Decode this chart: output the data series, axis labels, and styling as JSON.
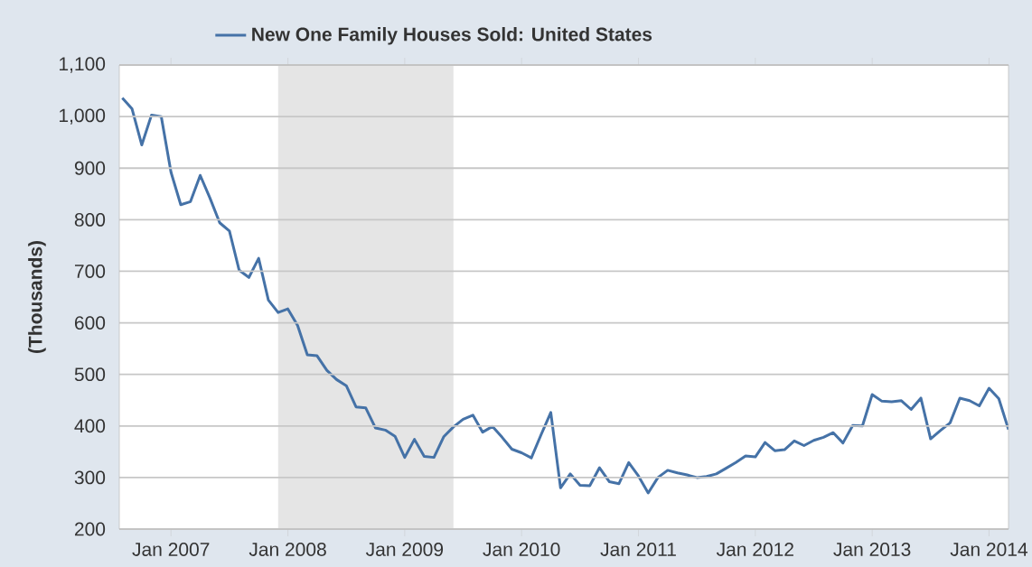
{
  "chart_data": {
    "type": "line",
    "ylabel": "(Thousands)",
    "x": [
      "2006-08",
      "2006-09",
      "2006-10",
      "2006-11",
      "2006-12",
      "2007-01",
      "2007-02",
      "2007-03",
      "2007-04",
      "2007-05",
      "2007-06",
      "2007-07",
      "2007-08",
      "2007-09",
      "2007-10",
      "2007-11",
      "2007-12",
      "2008-01",
      "2008-02",
      "2008-03",
      "2008-04",
      "2008-05",
      "2008-06",
      "2008-07",
      "2008-08",
      "2008-09",
      "2008-10",
      "2008-11",
      "2008-12",
      "2009-01",
      "2009-02",
      "2009-03",
      "2009-04",
      "2009-05",
      "2009-06",
      "2009-07",
      "2009-08",
      "2009-09",
      "2009-10",
      "2009-11",
      "2009-12",
      "2010-01",
      "2010-02",
      "2010-03",
      "2010-04",
      "2010-05",
      "2010-06",
      "2010-07",
      "2010-08",
      "2010-09",
      "2010-10",
      "2010-11",
      "2010-12",
      "2011-01",
      "2011-02",
      "2011-03",
      "2011-04",
      "2011-05",
      "2011-06",
      "2011-07",
      "2011-08",
      "2011-09",
      "2011-10",
      "2011-11",
      "2011-12",
      "2012-01",
      "2012-02",
      "2012-03",
      "2012-04",
      "2012-05",
      "2012-06",
      "2012-07",
      "2012-08",
      "2012-09",
      "2012-10",
      "2012-11",
      "2012-12",
      "2013-01",
      "2013-02",
      "2013-03",
      "2013-04",
      "2013-05",
      "2013-06",
      "2013-07",
      "2013-08",
      "2013-09",
      "2013-10",
      "2013-11",
      "2013-12",
      "2014-01",
      "2014-02",
      "2014-03"
    ],
    "series": [
      {
        "name": "New One Family Houses Sold: United States",
        "color": "#4572a7",
        "values": [
          1036,
          1015,
          945,
          1003,
          1000,
          892,
          829,
          835,
          886,
          842,
          794,
          778,
          702,
          688,
          725,
          644,
          620,
          627,
          595,
          538,
          536,
          508,
          490,
          478,
          437,
          435,
          396,
          392,
          380,
          339,
          374,
          341,
          339,
          379,
          398,
          413,
          421,
          388,
          399,
          378,
          355,
          348,
          338,
          383,
          426,
          280,
          307,
          285,
          284,
          319,
          292,
          288,
          329,
          303,
          270,
          300,
          314,
          309,
          305,
          300,
          302,
          307,
          318,
          329,
          342,
          340,
          368,
          352,
          354,
          371,
          362,
          372,
          378,
          387,
          367,
          401,
          400,
          461,
          448,
          447,
          449,
          432,
          454,
          375,
          391,
          406,
          454,
          449,
          439,
          473,
          453,
          393
        ]
      }
    ],
    "xlim": [
      "2006-07-22",
      "2014-03"
    ],
    "xticks": [
      {
        "value": "2007-01",
        "label": "Jan 2007"
      },
      {
        "value": "2008-01",
        "label": "Jan 2008"
      },
      {
        "value": "2009-01",
        "label": "Jan 2009"
      },
      {
        "value": "2010-01",
        "label": "Jan 2010"
      },
      {
        "value": "2011-01",
        "label": "Jan 2011"
      },
      {
        "value": "2012-01",
        "label": "Jan 2012"
      },
      {
        "value": "2013-01",
        "label": "Jan 2013"
      },
      {
        "value": "2014-01",
        "label": "Jan 2014"
      }
    ],
    "ylim": [
      200,
      1100
    ],
    "yticks": [
      200,
      300,
      400,
      500,
      600,
      700,
      800,
      900,
      {
        "value": 1000,
        "label": "1,000"
      },
      {
        "value": 1100,
        "label": "1,100"
      }
    ],
    "bands": [
      {
        "axis": "x",
        "from": "2007-12",
        "to": "2009-06",
        "color": "#e5e5e5"
      }
    ],
    "grid": "y",
    "legend": "top",
    "marker": "none",
    "line_style": "solid"
  }
}
